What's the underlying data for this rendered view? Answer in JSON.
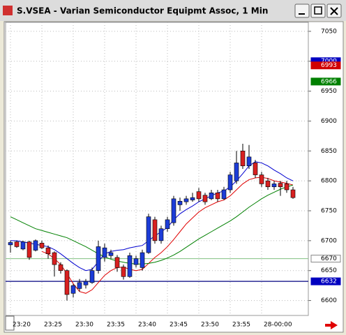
{
  "chart_data": {
    "type": "candlestick",
    "title": "S.VSEA - Varian Semiconductor Equipmt Assoc, 1 Min",
    "categories": [
      "23:20",
      null,
      null,
      null,
      null,
      "23:25",
      null,
      null,
      null,
      null,
      "23:30",
      null,
      null,
      null,
      null,
      "23:35",
      null,
      null,
      null,
      null,
      "23:40",
      null,
      null,
      null,
      null,
      "23:45",
      null,
      null,
      null,
      null,
      "23:50",
      null,
      null,
      null,
      null,
      "23:55",
      null,
      null,
      null,
      null,
      "28-00:00",
      null,
      null,
      null,
      null,
      null
    ],
    "up_color": "#1c3cd8",
    "down_color": "#d82020",
    "open": [
      6693,
      6698,
      6686,
      6698,
      6684,
      6696,
      6688,
      6680,
      6660,
      6650,
      6612,
      6620,
      6626,
      6630,
      6650,
      6672,
      6675,
      6672,
      6656,
      6640,
      6660,
      6655,
      6680,
      6735,
      6700,
      6720,
      6730,
      6760,
      6765,
      6768,
      6782,
      6776,
      6770,
      6780,
      6770,
      6785,
      6800,
      6850,
      6825,
      6830,
      6810,
      6800,
      6790,
      6796,
      6795,
      6785
    ],
    "high": [
      6700,
      6700,
      6700,
      6700,
      6702,
      6700,
      6692,
      6682,
      6664,
      6652,
      6628,
      6636,
      6636,
      6655,
      6700,
      6695,
      6685,
      6676,
      6660,
      6680,
      6675,
      6685,
      6745,
      6740,
      6725,
      6740,
      6775,
      6772,
      6775,
      6780,
      6788,
      6780,
      6785,
      6785,
      6790,
      6815,
      6850,
      6862,
      6860,
      6835,
      6815,
      6805,
      6800,
      6800,
      6800,
      6790
    ],
    "low": [
      6680,
      6688,
      6684,
      6668,
      6682,
      6686,
      6670,
      6640,
      6645,
      6600,
      6605,
      6615,
      6620,
      6628,
      6645,
      6665,
      6670,
      6648,
      6635,
      6638,
      6655,
      6650,
      6678,
      6695,
      6695,
      6715,
      6725,
      6750,
      6760,
      6765,
      6765,
      6760,
      6768,
      6765,
      6768,
      6780,
      6795,
      6820,
      6820,
      6805,
      6790,
      6785,
      6785,
      6775,
      6780,
      6770
    ],
    "close": [
      6697,
      6690,
      6698,
      6672,
      6700,
      6688,
      6678,
      6660,
      6650,
      6610,
      6625,
      6630,
      6632,
      6650,
      6690,
      6688,
      6680,
      6655,
      6640,
      6675,
      6670,
      6680,
      6740,
      6700,
      6720,
      6735,
      6770,
      6766,
      6770,
      6772,
      6770,
      6765,
      6780,
      6770,
      6785,
      6810,
      6830,
      6825,
      6840,
      6810,
      6795,
      6790,
      6795,
      6790,
      6785,
      6772
    ],
    "series": [
      {
        "color": "#0000d0",
        "values": [
          6700,
          6700,
          6698,
          6696,
          6694,
          6692,
          6690,
          6685,
          6678,
          6670,
          6662,
          6655,
          6650,
          6652,
          6665,
          6678,
          6682,
          6684,
          6685,
          6688,
          6690,
          6692,
          6700,
          6708,
          6715,
          6722,
          6735,
          6745,
          6752,
          6758,
          6765,
          6770,
          6775,
          6780,
          6783,
          6790,
          6800,
          6812,
          6825,
          6832,
          6830,
          6825,
          6818,
          6812,
          6805,
          6800
        ]
      },
      {
        "color": "#e00000",
        "values": [
          null,
          null,
          null,
          null,
          null,
          6682,
          6678,
          6670,
          6660,
          6645,
          6628,
          6615,
          6612,
          6618,
          6630,
          6642,
          6650,
          6655,
          6656,
          6652,
          6650,
          6652,
          6662,
          6672,
          6680,
          6690,
          6702,
          6715,
          6728,
          6738,
          6748,
          6755,
          6760,
          6765,
          6768,
          6775,
          6785,
          6795,
          6802,
          6805,
          6806,
          6804,
          6800,
          6798,
          6796,
          6793
        ]
      },
      {
        "color": "#008000",
        "values": [
          6740,
          6735,
          6730,
          6725,
          6720,
          6717,
          6714,
          6711,
          6708,
          6705,
          6700,
          6695,
          6690,
          6684,
          6678,
          6673,
          6669,
          6666,
          6664,
          6662,
          6661,
          6661,
          6662,
          6664,
          6667,
          6671,
          6676,
          6682,
          6689,
          6696,
          6703,
          6709,
          6715,
          6721,
          6727,
          6733,
          6740,
          6748,
          6756,
          6763,
          6770,
          6776,
          6781,
          6786,
          6790,
          6793
        ]
      }
    ],
    "price_markers": [
      {
        "value": 7000,
        "color": "#0000c0"
      },
      {
        "value": 6993,
        "color": "#d00000"
      },
      {
        "value": 6966,
        "color": "#008000"
      },
      {
        "value": 6670,
        "color": "#ffffff",
        "line_color": "#90c890"
      },
      {
        "value": 6632,
        "color": "#0000c0",
        "line_color": "#000080"
      }
    ],
    "ylim": [
      6575,
      7065
    ],
    "yticks": [
      6600,
      6650,
      6700,
      6750,
      6800,
      6850,
      6900,
      6950,
      7000,
      7050
    ],
    "grid": true
  }
}
